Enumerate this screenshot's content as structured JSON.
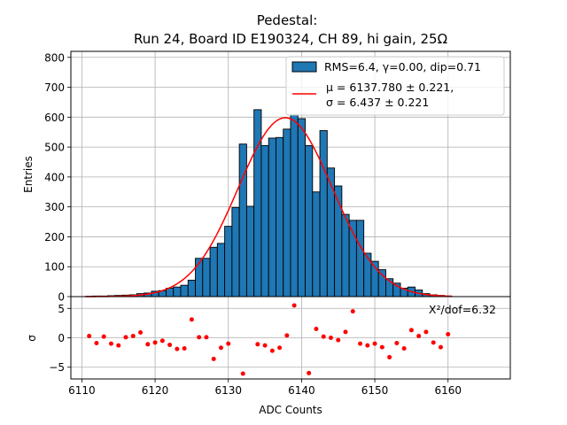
{
  "chart_data": [
    {
      "type": "bar",
      "title_line1": "Pedestal:",
      "title_line2": "Run 24, Board ID E190324, CH 89, hi gain, 25Ω",
      "ylabel": "Entries",
      "xlim": [
        6108.5,
        6168.5
      ],
      "ylim": [
        0,
        820
      ],
      "yticks": [
        0,
        100,
        200,
        300,
        400,
        500,
        600,
        700,
        800
      ],
      "grid": true,
      "legend_position": "top-right",
      "colors": {
        "bars": "#1f77b4",
        "edge": "#000000",
        "fit": "#ff0000"
      },
      "series": [
        {
          "name": "RMS=6.4, γ=0.00, dip=0.71",
          "x": [
            6111,
            6112,
            6113,
            6114,
            6115,
            6116,
            6117,
            6118,
            6119,
            6120,
            6121,
            6122,
            6123,
            6124,
            6125,
            6126,
            6127,
            6128,
            6129,
            6130,
            6131,
            6132,
            6133,
            6134,
            6135,
            6136,
            6137,
            6138,
            6139,
            6140,
            6141,
            6142,
            6143,
            6144,
            6145,
            6146,
            6147,
            6148,
            6149,
            6150,
            6151,
            6152,
            6153,
            6154,
            6155,
            6156,
            6157,
            6158,
            6159,
            6160
          ],
          "values": [
            1,
            2,
            2,
            3,
            4,
            5,
            6,
            10,
            12,
            18,
            20,
            28,
            32,
            38,
            55,
            128,
            128,
            165,
            178,
            235,
            298,
            510,
            302,
            625,
            505,
            530,
            532,
            560,
            608,
            595,
            505,
            350,
            555,
            430,
            370,
            275,
            255,
            255,
            145,
            118,
            90,
            60,
            45,
            28,
            32,
            22,
            10,
            6,
            4,
            2
          ]
        }
      ],
      "fit": {
        "label_mu": "μ = 6137.780 ± 0.221,",
        "label_sigma": "σ = 6.437 ± 0.221",
        "mu": 6137.78,
        "sigma": 6.437,
        "amplitude": 598
      }
    },
    {
      "type": "scatter",
      "ylabel": "σ",
      "xlabel": "ADC Counts",
      "xlim": [
        6108.5,
        6168.5
      ],
      "ylim": [
        -7,
        7
      ],
      "yticks": [
        -5,
        0,
        5
      ],
      "xticks": [
        6110,
        6120,
        6130,
        6140,
        6150,
        6160
      ],
      "grid": true,
      "annotation": "X²/dof=6.32",
      "color": "#ff0000",
      "x": [
        6111,
        6112,
        6113,
        6114,
        6115,
        6116,
        6117,
        6118,
        6119,
        6120,
        6121,
        6122,
        6123,
        6124,
        6125,
        6126,
        6127,
        6128,
        6129,
        6130,
        6131,
        6132,
        6133,
        6134,
        6135,
        6136,
        6137,
        6138,
        6139,
        6140,
        6141,
        6142,
        6143,
        6144,
        6145,
        6146,
        6147,
        6148,
        6149,
        6150,
        6151,
        6152,
        6153,
        6154,
        6155,
        6156,
        6157,
        6158,
        6159,
        6160
      ],
      "y": [
        0.3,
        -0.9,
        0.2,
        -1.0,
        -1.3,
        0.1,
        0.3,
        0.9,
        -1.1,
        -0.8,
        -0.5,
        -1.2,
        -1.9,
        -1.8,
        3.1,
        0.1,
        0.1,
        -3.6,
        -1.7,
        -1.0,
        8.2,
        -6.1,
        7.7,
        -1.1,
        -1.3,
        -2.2,
        -1.7,
        0.4,
        5.5,
        -7.4,
        -6.0,
        1.5,
        0.2,
        0.0,
        -0.4,
        1.0,
        4.5,
        -1.0,
        -1.3,
        -1.0,
        -1.6,
        -3.3,
        -0.9,
        -1.8,
        1.3,
        0.3,
        1.0,
        -0.8,
        -1.6,
        0.6
      ]
    }
  ]
}
